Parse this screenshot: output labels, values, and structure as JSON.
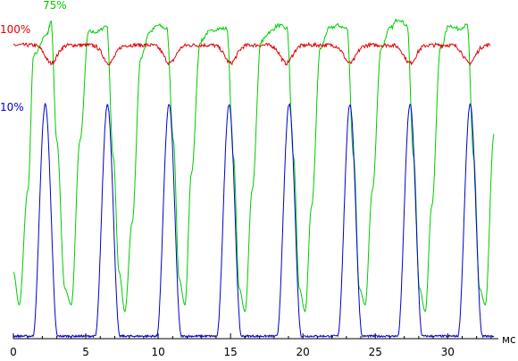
{
  "chart_data": {
    "type": "line",
    "x_unit": "мс",
    "xlim": [
      0,
      33.5
    ],
    "ylim": [
      0,
      1
    ],
    "x_ticks": [
      0,
      5,
      10,
      15,
      20,
      25,
      30
    ],
    "grid": false,
    "series": [
      {
        "label": "75%",
        "color": "#00cc00",
        "period": 4.15,
        "min_times": [
          -0.6,
          3.55,
          7.7,
          11.85,
          16.0,
          20.15,
          24.3,
          28.45,
          32.6
        ],
        "high_level": 0.92,
        "low_level": 0.1,
        "rise_duration": 1.2,
        "plateau_duration": 1.45,
        "fall_duration": 1.2,
        "fall_start_times": [
          0.85,
          5.0,
          9.15,
          13.3,
          17.45,
          21.6,
          25.75,
          29.9
        ],
        "x": [
          0.0,
          0.4,
          1.0,
          1.4,
          2.3,
          2.6,
          3.0,
          3.55,
          4.0,
          4.6,
          5.2,
          5.8,
          6.45,
          6.9,
          7.3,
          7.7,
          8.2,
          8.8,
          9.4,
          10.0,
          10.6,
          11.05,
          11.45,
          11.85,
          12.3,
          12.9,
          13.5,
          14.1,
          14.75,
          15.2,
          15.6,
          16.0,
          16.5,
          17.1,
          17.7,
          18.3,
          18.9,
          19.35,
          19.75,
          20.15,
          20.6,
          21.2,
          21.8,
          22.4,
          23.05,
          23.5,
          23.9,
          24.3,
          24.8,
          25.4,
          26.0,
          26.6,
          27.2,
          27.65,
          28.05,
          28.45,
          28.9,
          29.5,
          30.1,
          30.7,
          31.35,
          31.8,
          32.2,
          32.6,
          33.2
        ],
        "y": [
          0.2,
          0.1,
          0.45,
          0.86,
          0.92,
          0.96,
          0.6,
          0.15,
          0.1,
          0.6,
          0.93,
          0.93,
          0.95,
          0.55,
          0.2,
          0.08,
          0.35,
          0.85,
          0.93,
          0.95,
          0.94,
          0.6,
          0.18,
          0.1,
          0.5,
          0.9,
          0.93,
          0.94,
          0.94,
          0.55,
          0.15,
          0.08,
          0.45,
          0.9,
          0.93,
          0.95,
          0.94,
          0.55,
          0.15,
          0.08,
          0.4,
          0.88,
          0.94,
          0.95,
          0.94,
          0.55,
          0.15,
          0.1,
          0.45,
          0.88,
          0.94,
          0.97,
          0.95,
          0.55,
          0.15,
          0.08,
          0.4,
          0.88,
          0.95,
          0.94,
          0.95,
          0.55,
          0.15,
          0.1,
          0.62
        ]
      },
      {
        "label": "100%",
        "color": "#e00000",
        "base_level": 0.89,
        "dip_level": 0.835,
        "dip_centers": [
          2.6,
          6.6,
          10.8,
          15.0,
          18.85,
          23.25,
          27.4,
          31.5
        ],
        "dip_halfwidth": 0.9
      },
      {
        "label": "10%",
        "color": "#0000cc",
        "baseline": 0.005,
        "peak_level": 0.71,
        "peak_centers": [
          2.2,
          6.5,
          10.75,
          14.9,
          19.05,
          23.25,
          27.4,
          31.55
        ],
        "peak_halfwidth": 0.85
      }
    ]
  }
}
